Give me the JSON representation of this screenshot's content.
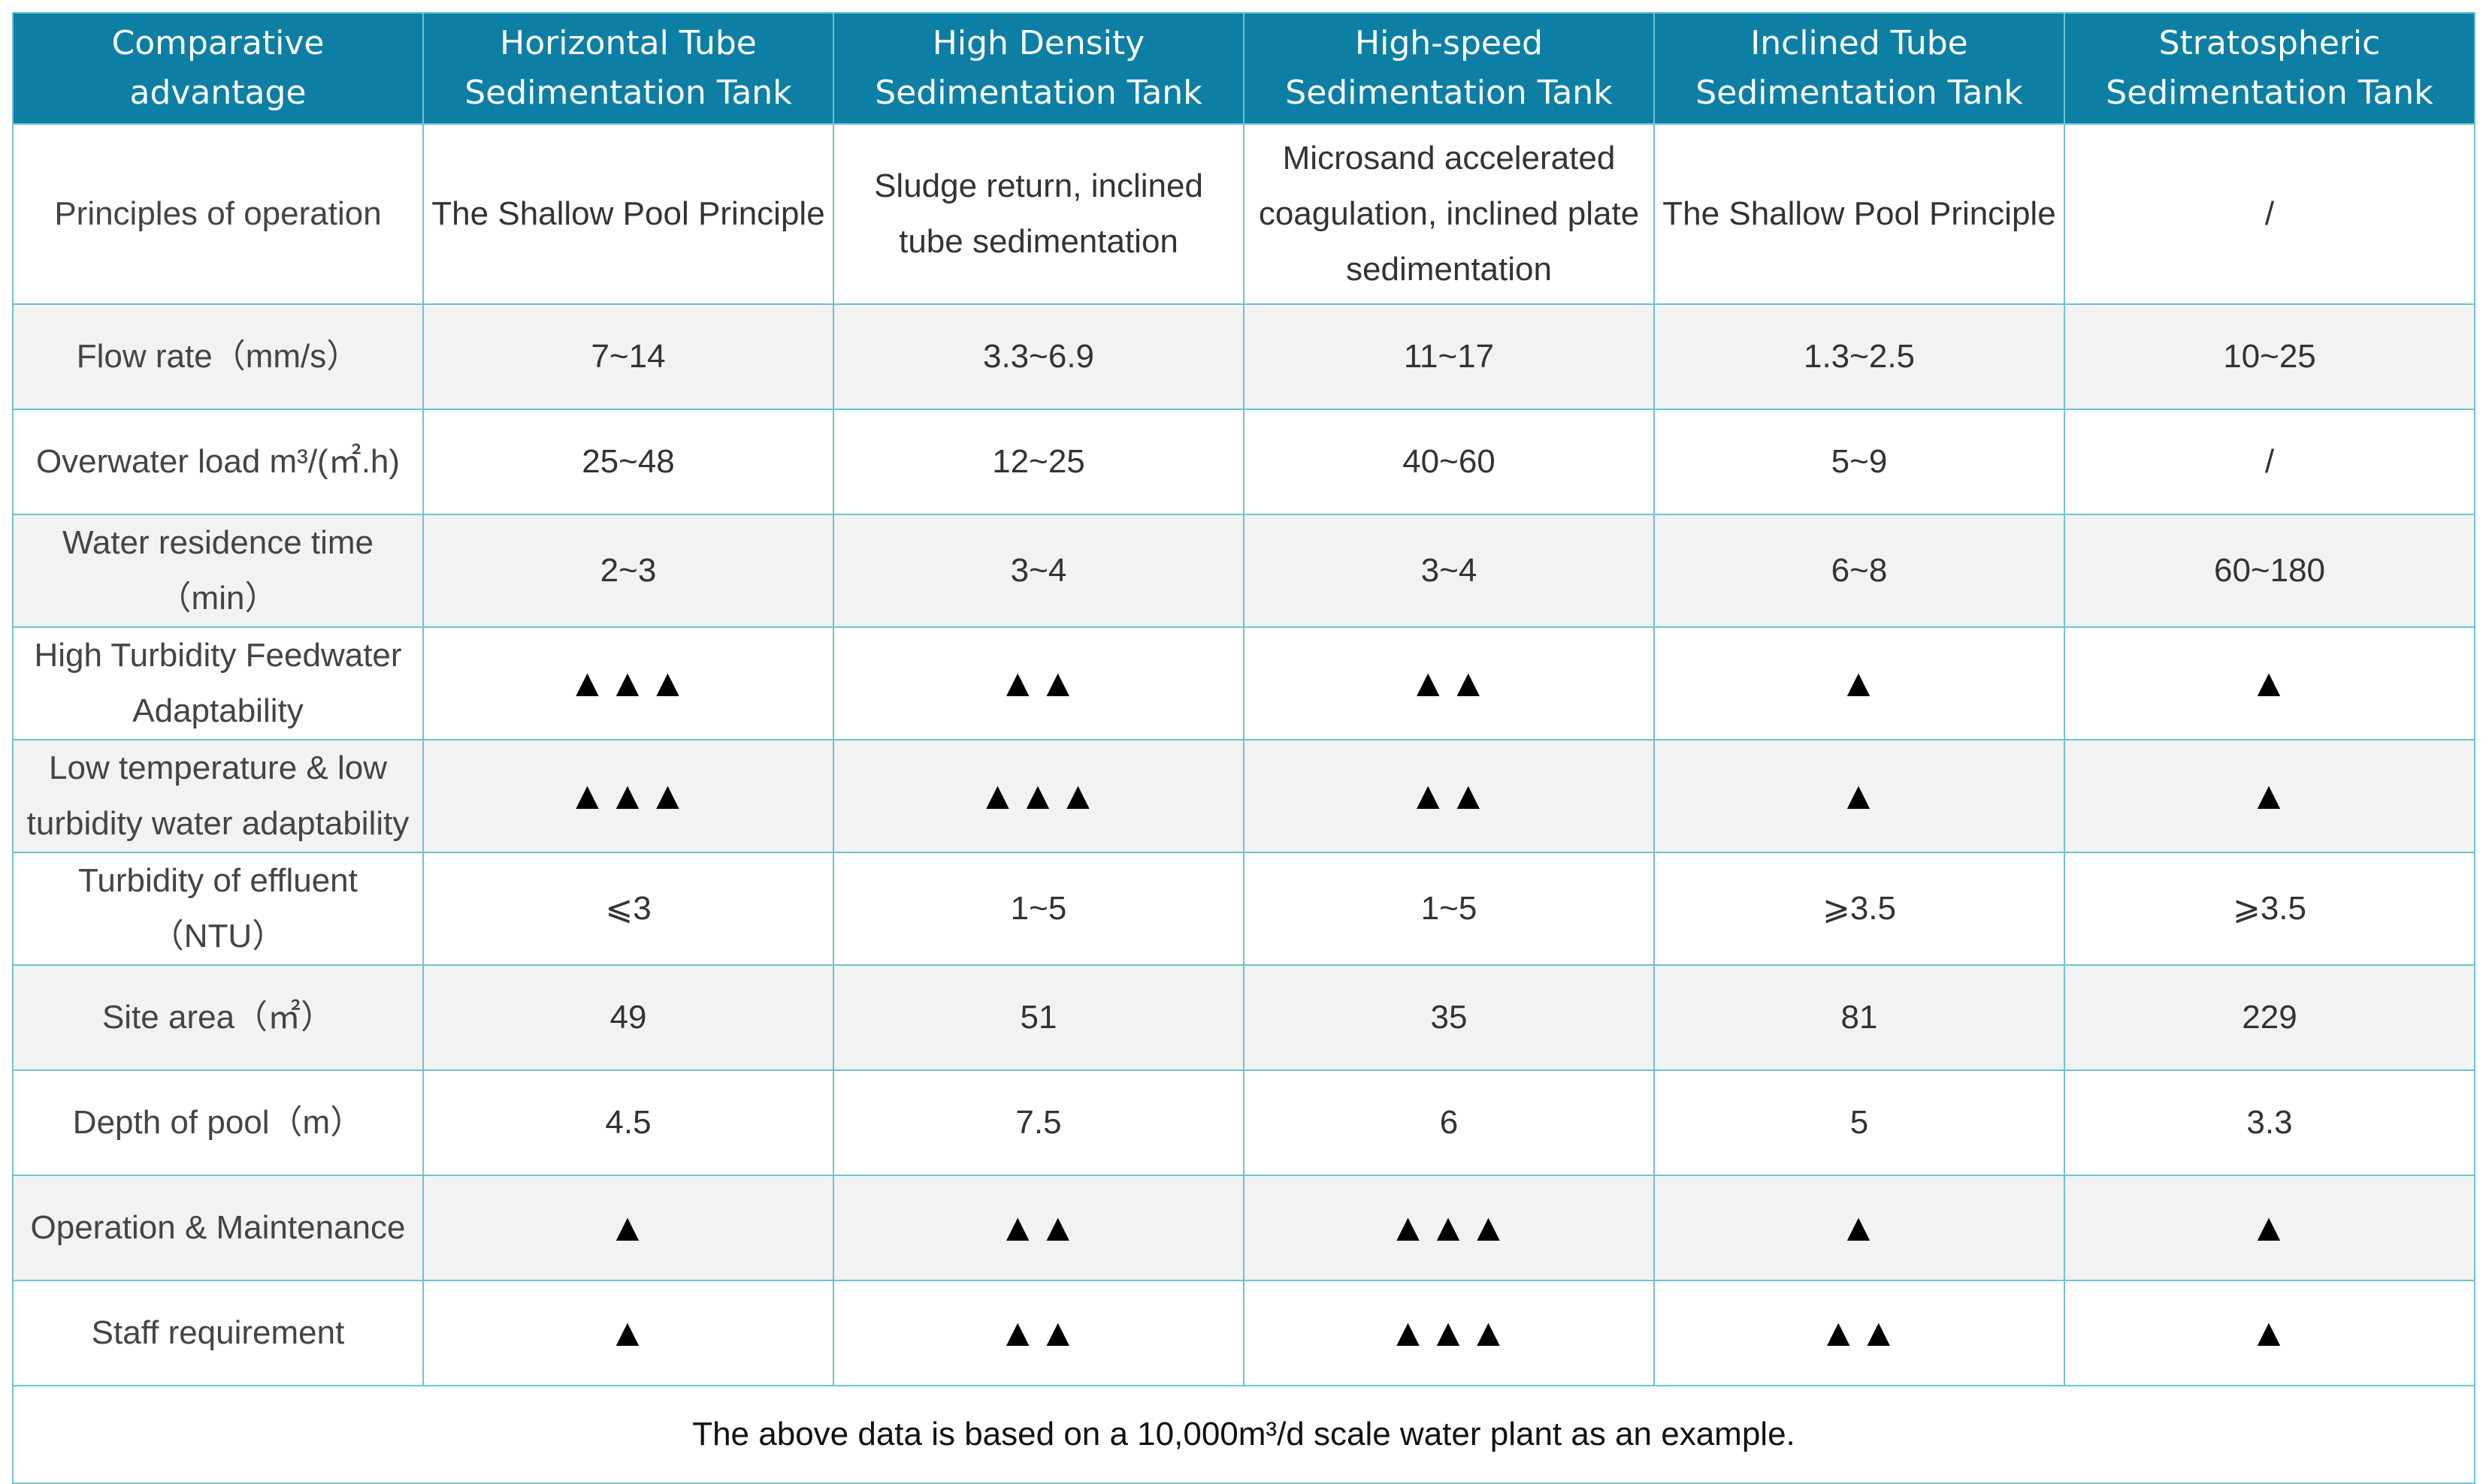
{
  "header": {
    "corner": "Comparative advantage",
    "columns": [
      "Horizontal Tube Sedimentation Tank",
      "High Density Sedimentation Tank",
      "High-speed Sedimentation Tank",
      "Inclined Tube Sedimentation Tank",
      "Stratospheric Sedimentation Tank"
    ]
  },
  "rows": [
    {
      "label": "Principles of operation",
      "cells": [
        "The Shallow Pool Principle",
        "Sludge return, inclined tube sedimentation",
        "Microsand accelerated coagulation, inclined plate sedimentation",
        "The Shallow Pool Principle",
        "/"
      ]
    },
    {
      "label": "Flow rate（mm/s）",
      "cells": [
        "7~14",
        "3.3~6.9",
        "11~17",
        "1.3~2.5",
        "10~25"
      ]
    },
    {
      "label": "Overwater load m³/(㎡.h)",
      "cells": [
        "25~48",
        "12~25",
        "40~60",
        "5~9",
        "/"
      ]
    },
    {
      "label": "Water residence time（min）",
      "cells": [
        "2~3",
        "3~4",
        "3~4",
        "6~8",
        "60~180"
      ]
    },
    {
      "label": "High Turbidity Feedwater Adaptability",
      "cells": [
        "▲▲▲",
        "▲▲",
        "▲▲",
        "▲",
        "▲"
      ]
    },
    {
      "label": "Low temperature & low turbidity water adaptability",
      "cells": [
        "▲▲▲",
        "▲▲▲",
        "▲▲",
        "▲",
        "▲"
      ]
    },
    {
      "label": "Turbidity of effluent（NTU）",
      "cells": [
        "⩽3",
        "1~5",
        "1~5",
        "⩾3.5",
        "⩾3.5"
      ]
    },
    {
      "label": "Site area（㎡）",
      "cells": [
        "49",
        "51",
        "35",
        "81",
        "229"
      ]
    },
    {
      "label": "Depth of pool（m）",
      "cells": [
        "4.5",
        "7.5",
        "6",
        "5",
        "3.3"
      ]
    },
    {
      "label": "Operation & Maintenance",
      "cells": [
        "▲",
        "▲▲",
        "▲▲▲",
        "▲",
        "▲"
      ]
    },
    {
      "label": "Staff requirement",
      "cells": [
        "▲",
        "▲▲",
        "▲▲▲",
        "▲▲",
        "▲"
      ]
    }
  ],
  "footnote": "The above data is based on a 10,000m³/d scale water plant as an example."
}
